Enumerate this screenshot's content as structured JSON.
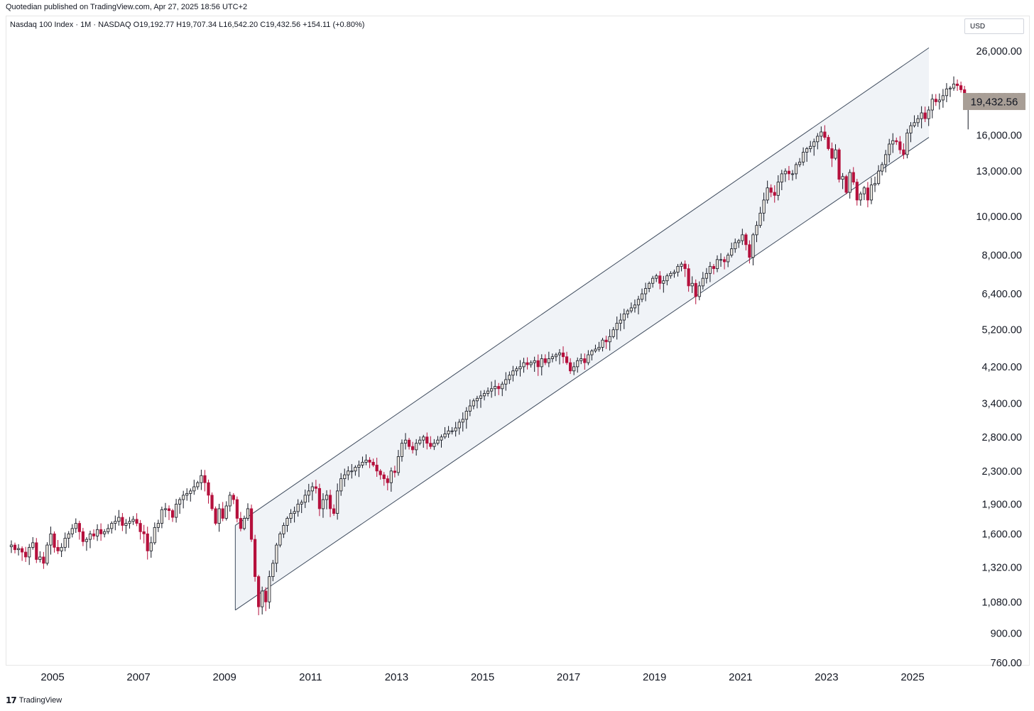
{
  "header": {
    "published_by": "Quotedian published on TradingView.com, Apr 27, 2025 18:56 UTC+2",
    "symbol_line": "Nasdaq 100 Index · 1M · NASDAQ  O19,192.77  H19,707.34  L16,542.20  C19,432.56  +154.11 (+0.80%)"
  },
  "currency_label": "USD",
  "footer": {
    "logo_icon": "tradingview-logo-icon",
    "brand": "TradingView"
  },
  "colors": {
    "up_body": "#ece8e0",
    "down_body": "#b5103c",
    "wick": "#131722",
    "channel_line": "#3d4a5c",
    "channel_fill": "#f0f3f7",
    "price_tag": "#a89e96"
  },
  "chart_data": {
    "type": "candlestick",
    "scale": "log",
    "x_tick_labels": [
      "2005",
      "2007",
      "2009",
      "2011",
      "2013",
      "2015",
      "2017",
      "2019",
      "2021",
      "2023",
      "2025"
    ],
    "y_tick_labels": [
      "26,000.00",
      "20,000.00",
      "16,000.00",
      "13,000.00",
      "10,000.00",
      "8,000.00",
      "6,400.00",
      "5,200.00",
      "4,200.00",
      "3,400.00",
      "2,800.00",
      "2,300.00",
      "1,900.00",
      "1,600.00",
      "1,320.00",
      "1,080.00",
      "900.00",
      "760.00"
    ],
    "y_ticks": [
      26000,
      20000,
      16000,
      13000,
      10000,
      8000,
      6400,
      5200,
      4200,
      3400,
      2800,
      2300,
      1900,
      1600,
      1320,
      1080,
      900,
      760
    ],
    "x_range": [
      2004.0,
      2025.5
    ],
    "last_price": "19,432.56",
    "last_value": 19432.56,
    "ohlc_last": {
      "open": 19192.77,
      "high": 19707.34,
      "low": 16542.2,
      "close": 19432.56
    },
    "closes": [
      1500,
      1460,
      1470,
      1440,
      1400,
      1480,
      1520,
      1380,
      1400,
      1350,
      1500,
      1600,
      1480,
      1450,
      1480,
      1560,
      1600,
      1650,
      1700,
      1620,
      1530,
      1550,
      1600,
      1580,
      1640,
      1600,
      1620,
      1650,
      1700,
      1720,
      1760,
      1680,
      1700,
      1720,
      1740,
      1700,
      1620,
      1600,
      1450,
      1520,
      1660,
      1700,
      1840,
      1850,
      1830,
      1760,
      1900,
      1950,
      2000,
      2020,
      2050,
      2100,
      2150,
      2240,
      2150,
      2000,
      1850,
      1700,
      1850,
      1750,
      1880,
      2000,
      1950,
      1750,
      1650,
      1750,
      1850,
      1550,
      1250,
      1050,
      1150,
      1080,
      1250,
      1350,
      1500,
      1600,
      1680,
      1750,
      1800,
      1820,
      1900,
      1920,
      2000,
      2050,
      2100,
      2080,
      1850,
      1950,
      2000,
      1850,
      1800,
      2050,
      2200,
      2250,
      2300,
      2300,
      2350,
      2380,
      2420,
      2450,
      2420,
      2380,
      2300,
      2250,
      2200,
      2150,
      2300,
      2280,
      2500,
      2700,
      2750,
      2650,
      2600,
      2700,
      2750,
      2800,
      2700,
      2650,
      2700,
      2750,
      2800,
      2850,
      2900,
      2900,
      2950,
      3050,
      3100,
      3250,
      3350,
      3450,
      3500,
      3550,
      3600,
      3650,
      3700,
      3750,
      3700,
      3800,
      3900,
      4000,
      4100,
      4150,
      4200,
      4300,
      4250,
      4300,
      4350,
      4200,
      4400,
      4300,
      4400,
      4450,
      4500,
      4550,
      4450,
      4300,
      4100,
      4200,
      4350,
      4400,
      4300,
      4500,
      4600,
      4650,
      4700,
      4900,
      4850,
      5000,
      5200,
      5400,
      5500,
      5700,
      5800,
      5900,
      6000,
      6200,
      6400,
      6600,
      6800,
      7000,
      7100,
      6800,
      6900,
      7100,
      7200,
      7250,
      7500,
      7600,
      7400,
      6700,
      6800,
      6300,
      6700,
      7000,
      7200,
      7500,
      7400,
      7800,
      7800,
      7700,
      8000,
      8300,
      8600,
      8700,
      9000,
      8500,
      7900,
      9000,
      9500,
      10200,
      11000,
      11800,
      11500,
      11300,
      12200,
      12800,
      13000,
      12800,
      12800,
      13500,
      13700,
      14500,
      14800,
      15000,
      15400,
      15900,
      16300,
      15800,
      14800,
      14000,
      14700,
      12400,
      12600,
      11500,
      12900,
      12200,
      11000,
      11400,
      11800,
      11000,
      12000,
      12100,
      13000,
      13500,
      14300,
      15200,
      15500,
      15400,
      14700,
      14300,
      16200,
      16900,
      17200,
      17600,
      18200,
      17600,
      18500,
      19700,
      19400,
      19600,
      20100,
      20900,
      21000,
      21500,
      21300,
      20800,
      19500,
      19432.56
    ],
    "channel": {
      "start_date": 2009.25,
      "end_date": 2025.38,
      "upper_start": 1680,
      "lower_start": 1030,
      "upper_end": 26500,
      "lower_end": 15800
    }
  }
}
